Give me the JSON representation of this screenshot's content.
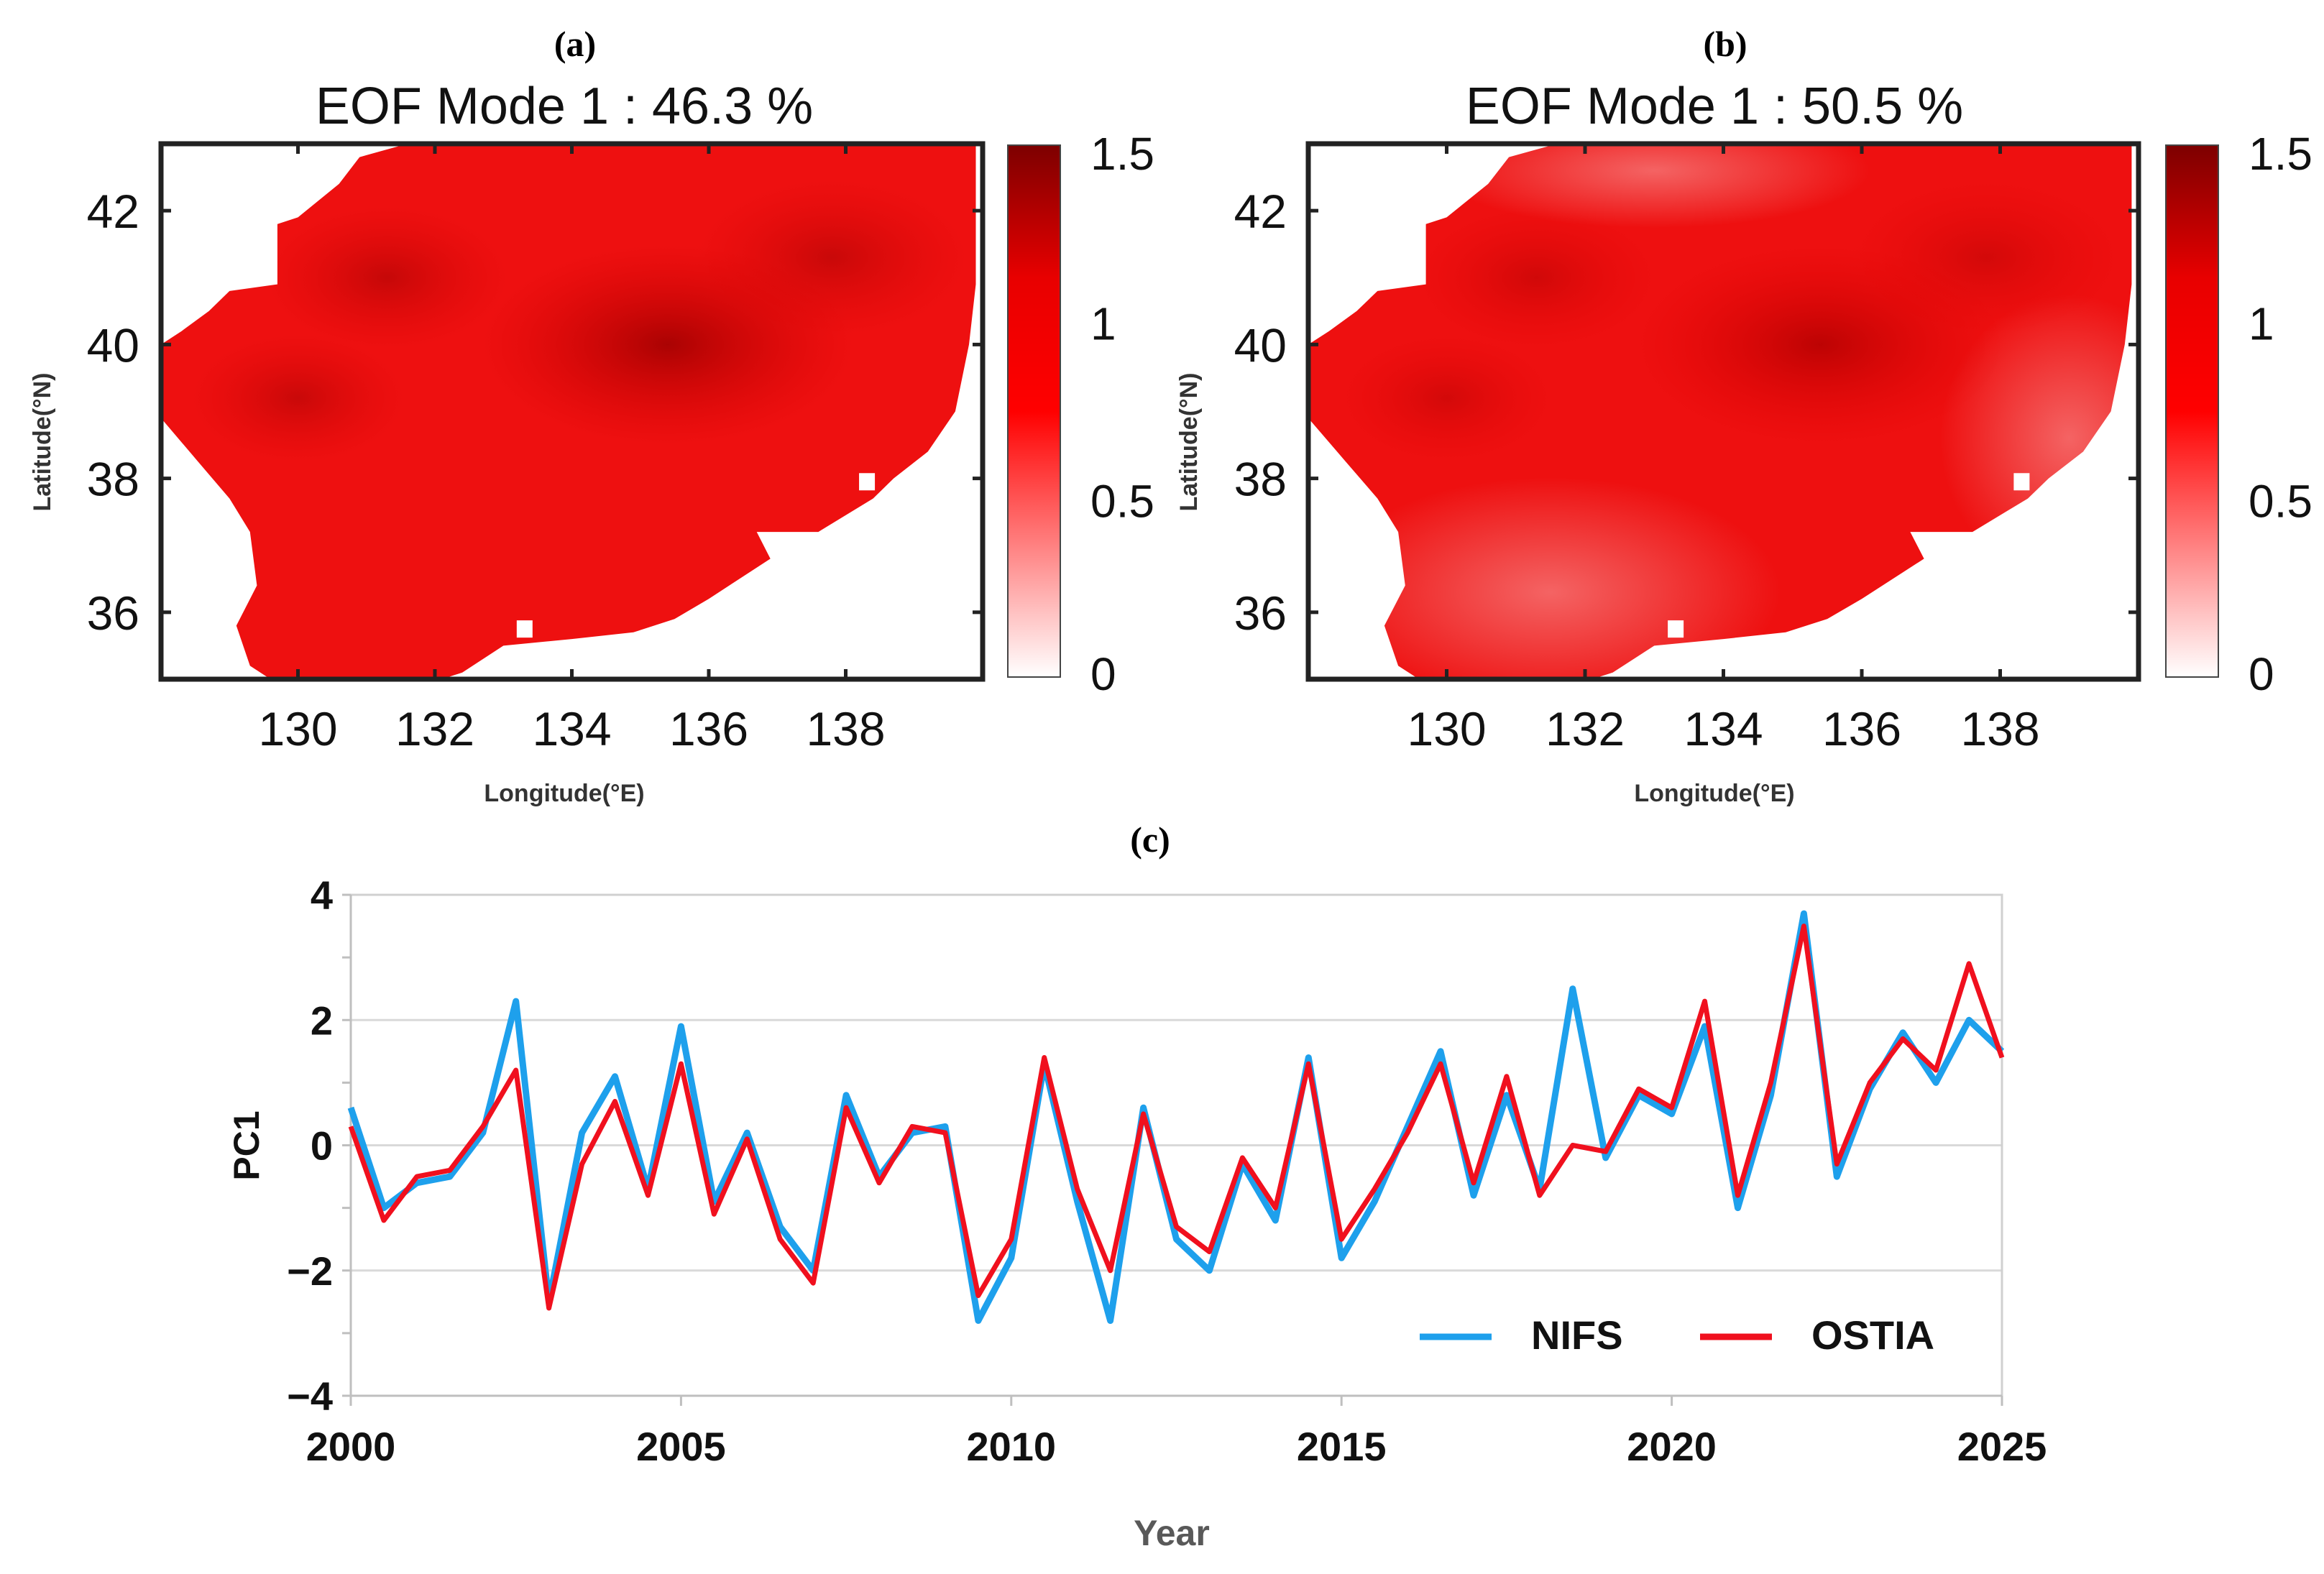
{
  "panel_labels": {
    "a": "(a)",
    "b": "(b)",
    "c": "(c)"
  },
  "colors": {
    "nifs": "#1ea0ec",
    "ostia": "#f0101e",
    "map_fill": "#ee1010",
    "map_dark": "#b00000"
  },
  "chart_data": [
    {
      "type": "heatmap",
      "panel": "a",
      "title": "EOF Mode 1 : 46.3 %",
      "xlabel": "Longitude(°E)",
      "ylabel": "Latitude(°N)",
      "xlim": [
        128,
        140
      ],
      "ylim": [
        35,
        43
      ],
      "xticks": [
        130,
        132,
        134,
        136,
        138
      ],
      "yticks": [
        36,
        38,
        40,
        42
      ],
      "colorbar": {
        "min": 0,
        "max": 1.5,
        "ticks": [
          "0",
          "0.5",
          "1",
          "1.5"
        ]
      },
      "typical_value": 0.9,
      "max_region": {
        "lon": 135.4,
        "lat": 40.0,
        "value": 1.15
      }
    },
    {
      "type": "heatmap",
      "panel": "b",
      "title": "EOF Mode 1 : 50.5 %",
      "xlabel": "Longitude(°E)",
      "ylabel": "Latitude(°N)",
      "xlim": [
        128,
        140
      ],
      "ylim": [
        35,
        43
      ],
      "xticks": [
        130,
        132,
        134,
        136,
        138
      ],
      "yticks": [
        36,
        38,
        40,
        42
      ],
      "colorbar": {
        "min": 0,
        "max": 1.5,
        "ticks": [
          "0",
          "0.5",
          "1",
          "1.5"
        ]
      },
      "typical_value": 0.8,
      "max_region": {
        "lon": 135.4,
        "lat": 40.0,
        "value": 1.1
      }
    },
    {
      "type": "line",
      "panel": "c",
      "xlabel": "Year",
      "ylabel": "PC1",
      "xlim": [
        2000,
        2025
      ],
      "ylim": [
        -4,
        4
      ],
      "xticks": [
        "2000",
        "2005",
        "2010",
        "2015",
        "2020",
        "2025"
      ],
      "yticks": [
        "−4",
        "−2",
        "0",
        "2",
        "4"
      ],
      "legend": {
        "position": "bottom-right"
      },
      "series": [
        {
          "name": "NIFS",
          "x": [
            2000.0,
            2000.5,
            2001.0,
            2001.5,
            2002.0,
            2002.5,
            2003.0,
            2003.5,
            2004.0,
            2004.5,
            2005.0,
            2005.5,
            2006.0,
            2006.5,
            2007.0,
            2007.5,
            2008.0,
            2008.5,
            2009.0,
            2009.5,
            2010.0,
            2010.5,
            2011.0,
            2011.5,
            2012.0,
            2012.5,
            2013.0,
            2013.5,
            2014.0,
            2014.5,
            2015.0,
            2015.5,
            2016.0,
            2016.5,
            2017.0,
            2017.5,
            2018.0,
            2018.5,
            2019.0,
            2019.5,
            2020.0,
            2020.5,
            2021.0,
            2021.5,
            2022.0,
            2022.5,
            2023.0,
            2023.5,
            2024.0,
            2024.5,
            2025.0
          ],
          "values": [
            0.6,
            -1.0,
            -0.6,
            -0.5,
            0.2,
            2.3,
            -2.5,
            0.2,
            1.1,
            -0.7,
            1.9,
            -0.9,
            0.2,
            -1.3,
            -2.0,
            0.8,
            -0.5,
            0.2,
            0.3,
            -2.8,
            -1.8,
            1.3,
            -0.9,
            -2.8,
            0.6,
            -1.5,
            -2.0,
            -0.3,
            -1.2,
            1.4,
            -1.8,
            -0.9,
            0.3,
            1.5,
            -0.8,
            0.8,
            -0.7,
            2.5,
            -0.2,
            0.8,
            0.5,
            1.9,
            -1.0,
            0.8,
            3.7,
            -0.5,
            0.9,
            1.8,
            1.0,
            2.0,
            1.5
          ]
        },
        {
          "name": "OSTIA",
          "x": [
            2000.0,
            2000.5,
            2001.0,
            2001.5,
            2002.0,
            2002.5,
            2003.0,
            2003.5,
            2004.0,
            2004.5,
            2005.0,
            2005.5,
            2006.0,
            2006.5,
            2007.0,
            2007.5,
            2008.0,
            2008.5,
            2009.0,
            2009.5,
            2010.0,
            2010.5,
            2011.0,
            2011.5,
            2012.0,
            2012.5,
            2013.0,
            2013.5,
            2014.0,
            2014.5,
            2015.0,
            2015.5,
            2016.0,
            2016.5,
            2017.0,
            2017.5,
            2018.0,
            2018.5,
            2019.0,
            2019.5,
            2020.0,
            2020.5,
            2021.0,
            2021.5,
            2022.0,
            2022.5,
            2023.0,
            2023.5,
            2024.0,
            2024.5,
            2025.0
          ],
          "values": [
            0.3,
            -1.2,
            -0.5,
            -0.4,
            0.3,
            1.2,
            -2.6,
            -0.3,
            0.7,
            -0.8,
            1.3,
            -1.1,
            0.1,
            -1.5,
            -2.2,
            0.6,
            -0.6,
            0.3,
            0.2,
            -2.4,
            -1.5,
            1.4,
            -0.7,
            -2.0,
            0.5,
            -1.3,
            -1.7,
            -0.2,
            -1.0,
            1.3,
            -1.5,
            -0.7,
            0.2,
            1.3,
            -0.6,
            1.1,
            -0.8,
            0.0,
            -0.1,
            0.9,
            0.6,
            2.3,
            -0.8,
            1.0,
            3.5,
            -0.3,
            1.0,
            1.7,
            1.2,
            2.9,
            1.4
          ]
        }
      ]
    }
  ]
}
